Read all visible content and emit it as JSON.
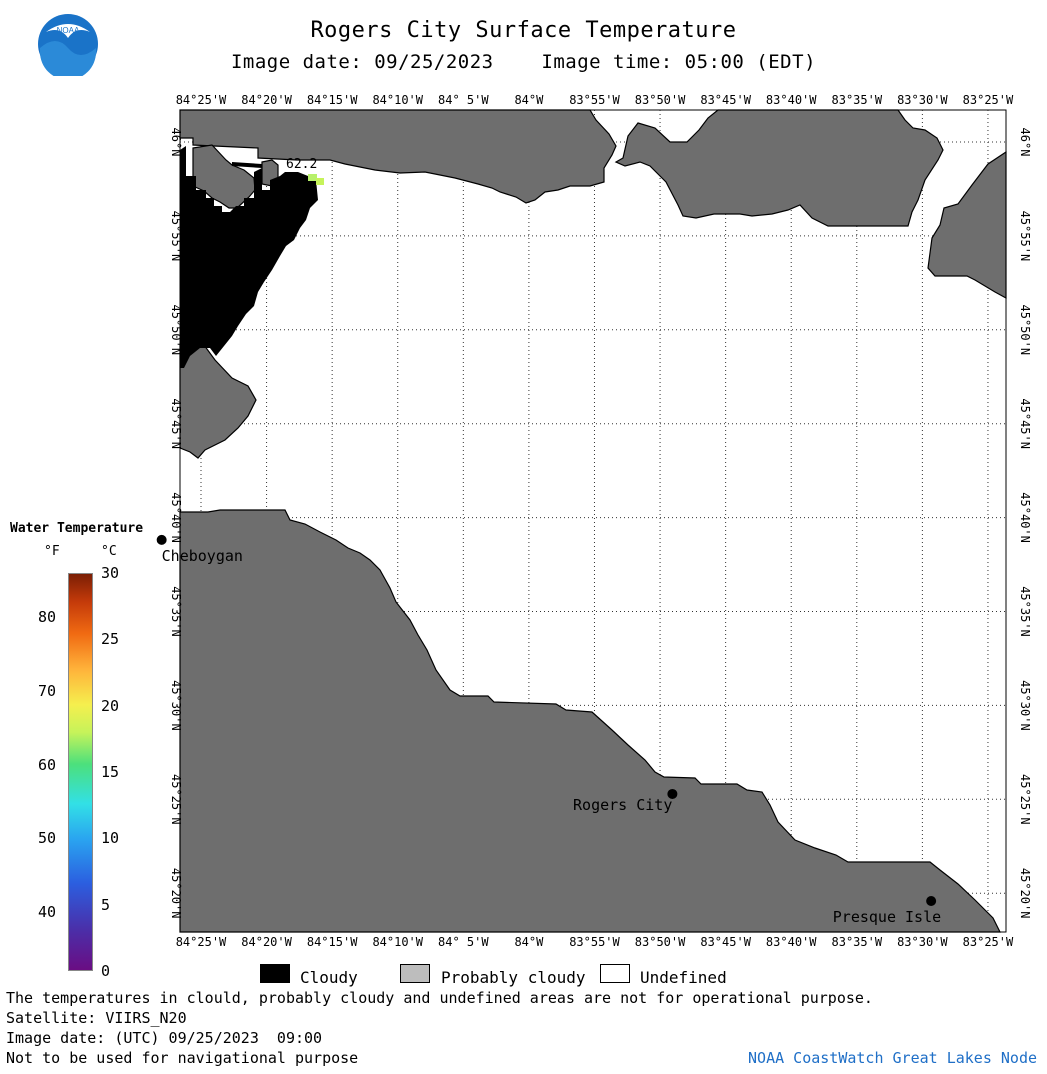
{
  "header": {
    "title": "Rogers City Surface Temperature",
    "image_date": "Image date: 09/25/2023",
    "image_time": "Image time: 05:00 (EDT)"
  },
  "colors": {
    "land": "#6e6e6e",
    "cloudy": "#000000",
    "probably_cloudy": "#bdbdbd",
    "undefined": "#ffffff",
    "noaa_blue": "#1a73c8",
    "credit_text": "#1f6fc7"
  },
  "map": {
    "lon_labels": [
      "84°25'W",
      "84°20'W",
      "84°15'W",
      "84°10'W",
      "84° 5'W",
      "84°W",
      "83°55'W",
      "83°50'W",
      "83°45'W",
      "83°40'W",
      "83°35'W",
      "83°30'W",
      "83°25'W"
    ],
    "lat_labels": [
      "46°N",
      "45°55'N",
      "45°50'N",
      "45°45'N",
      "45°40'N",
      "45°35'N",
      "45°30'N",
      "45°25'N",
      "45°20'N"
    ],
    "cities": [
      {
        "name": "Cheboygan",
        "lon": -84.4667,
        "lat": 45.6469
      },
      {
        "name": "Rogers City",
        "lon": -83.8177,
        "lat": 45.4214
      },
      {
        "name": "Presque Isle",
        "lon": -83.4889,
        "lat": 45.3264
      }
    ],
    "temperature_labels": [
      {
        "value": "62.2",
        "unit": "°F"
      }
    ],
    "legend": {
      "title": "Water Temperature",
      "unit_f": "°F",
      "unit_c": "°C",
      "f_ticks": [
        "80",
        "70",
        "60",
        "50",
        "40"
      ],
      "c_ticks": [
        "30",
        "25",
        "20",
        "15",
        "10",
        "5",
        "0"
      ],
      "scale_c_min": 0,
      "scale_c_max": 30
    }
  },
  "key": {
    "cloudy": "Cloudy",
    "probably_cloudy": "Probably cloudy",
    "undefined": "Undefined"
  },
  "footer": {
    "disclaimer": "The temperatures in clould, probably cloudy and undefined areas are not for operational purpose.",
    "satellite": "Satellite: VIIRS_N20",
    "image_date_utc": "Image date: (UTC) 09/25/2023  09:00",
    "nav_warning": "Not to be used for navigational purpose",
    "credit": "NOAA CoastWatch Great Lakes Node"
  },
  "logo": {
    "text": "NOAA"
  }
}
